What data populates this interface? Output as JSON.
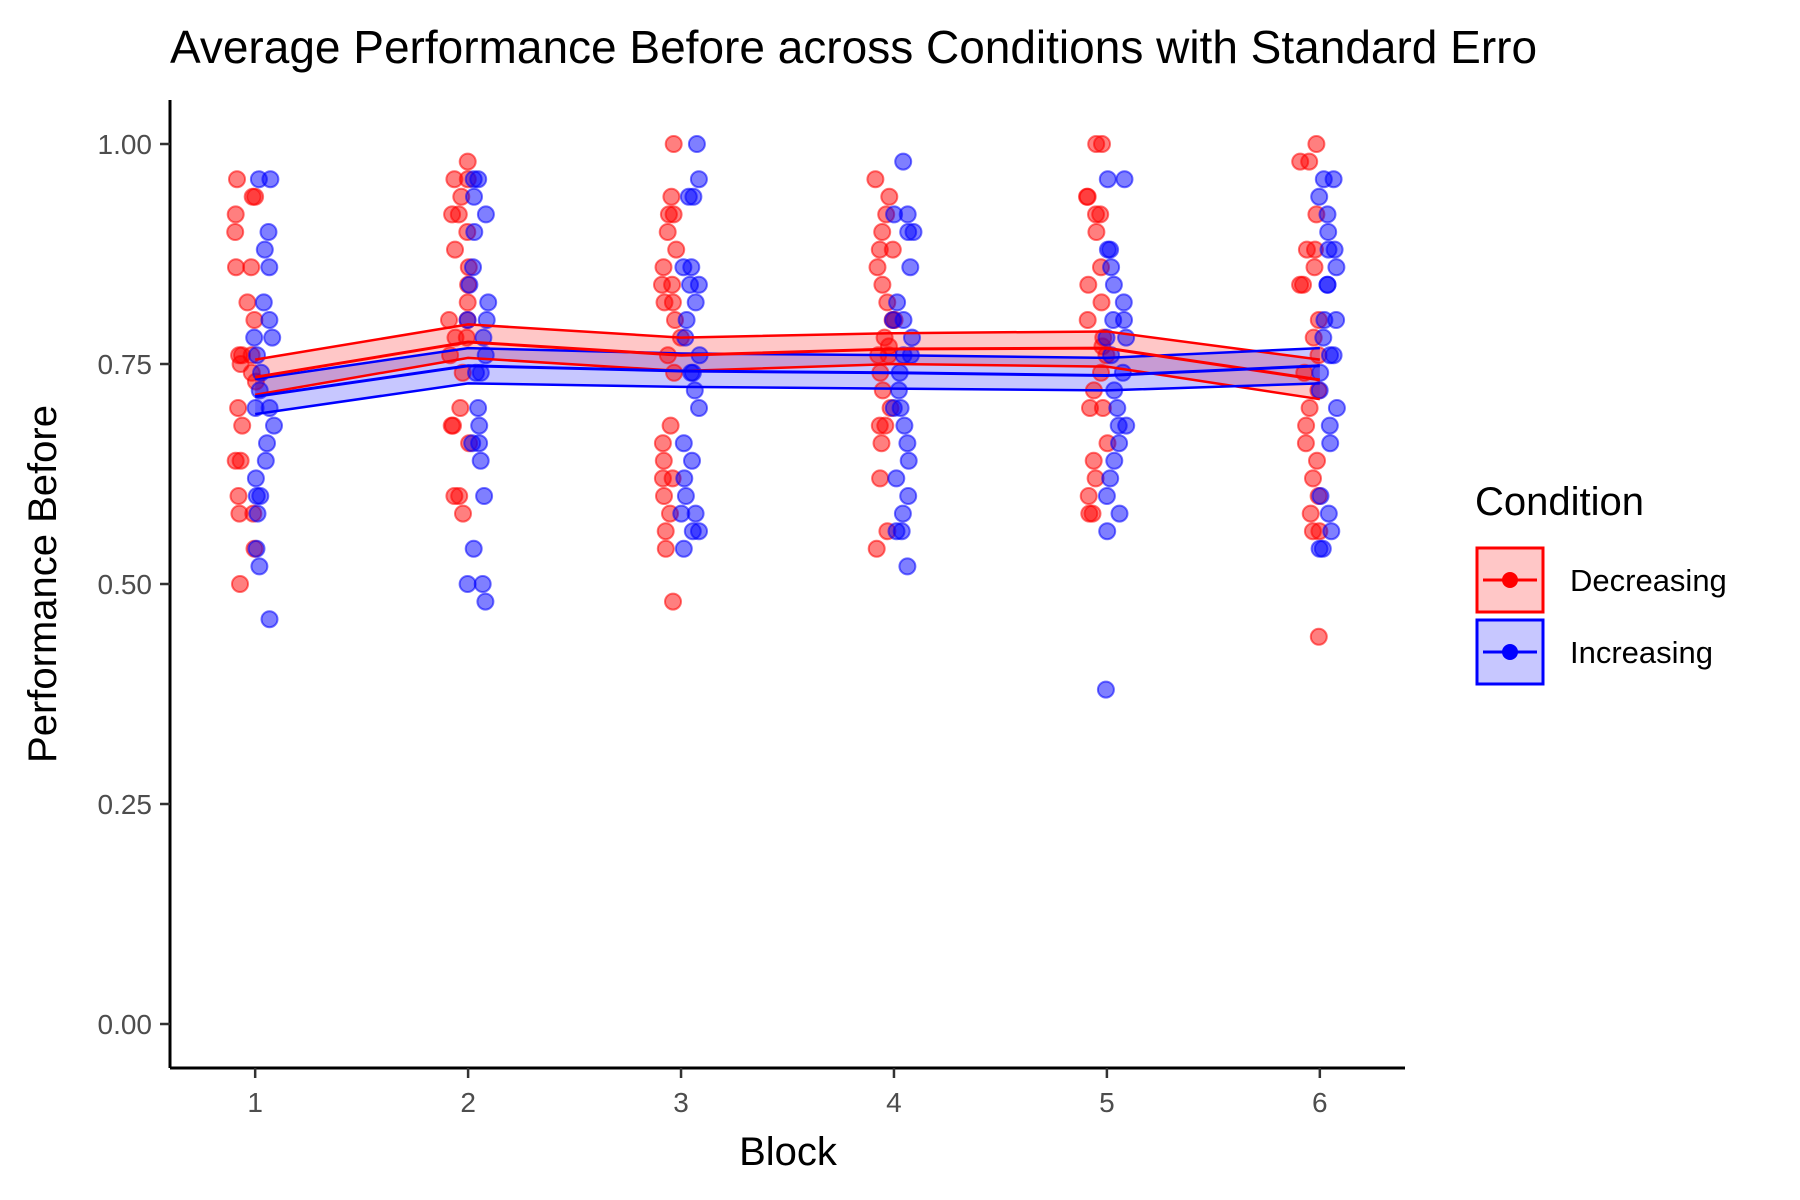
{
  "chart_data": {
    "type": "line",
    "title": "Average Performance Before across Conditions with Standard Erro",
    "xlabel": "Block",
    "ylabel": "Performance Before",
    "x": [
      1,
      2,
      3,
      4,
      5,
      6
    ],
    "xlim": [
      0.6,
      6.4
    ],
    "ylim": [
      -0.05,
      1.05
    ],
    "y_ticks": [
      "0.00",
      "0.25",
      "0.50",
      "0.75",
      "1.00"
    ],
    "x_ticks": [
      "1",
      "2",
      "3",
      "4",
      "5",
      "6"
    ],
    "grid": false,
    "legend": {
      "title": "Condition",
      "placement": "right"
    },
    "series": [
      {
        "name": "Decreasing",
        "color": "#FF0000",
        "fill": "#FFC7C7",
        "mean": [
          0.735,
          0.775,
          0.76,
          0.767,
          0.768,
          0.732
        ],
        "upper": [
          0.755,
          0.795,
          0.78,
          0.785,
          0.787,
          0.755
        ],
        "lower": [
          0.715,
          0.757,
          0.742,
          0.75,
          0.747,
          0.71
        ],
        "points": [
          [
            0.96,
            0.94,
            0.94,
            0.92,
            0.9,
            0.86,
            0.86,
            0.82,
            0.8,
            0.76,
            0.76,
            0.76,
            0.75,
            0.74,
            0.73,
            0.7,
            0.68,
            0.64,
            0.64,
            0.6,
            0.58,
            0.58,
            0.54,
            0.5
          ],
          [
            0.98,
            0.96,
            0.96,
            0.94,
            0.92,
            0.92,
            0.9,
            0.88,
            0.86,
            0.84,
            0.82,
            0.8,
            0.8,
            0.78,
            0.78,
            0.76,
            0.74,
            0.7,
            0.68,
            0.68,
            0.66,
            0.6,
            0.6,
            0.58
          ],
          [
            1.0,
            0.94,
            0.92,
            0.92,
            0.9,
            0.88,
            0.86,
            0.84,
            0.84,
            0.82,
            0.82,
            0.8,
            0.78,
            0.76,
            0.74,
            0.68,
            0.66,
            0.64,
            0.62,
            0.62,
            0.6,
            0.58,
            0.56,
            0.54,
            0.48
          ],
          [
            0.96,
            0.94,
            0.92,
            0.9,
            0.88,
            0.88,
            0.86,
            0.84,
            0.82,
            0.8,
            0.8,
            0.78,
            0.77,
            0.76,
            0.76,
            0.74,
            0.72,
            0.7,
            0.68,
            0.68,
            0.66,
            0.62,
            0.56,
            0.54
          ],
          [
            1.0,
            1.0,
            0.94,
            0.94,
            0.92,
            0.92,
            0.9,
            0.86,
            0.84,
            0.82,
            0.8,
            0.78,
            0.77,
            0.76,
            0.74,
            0.72,
            0.7,
            0.7,
            0.66,
            0.64,
            0.62,
            0.6,
            0.58,
            0.58
          ],
          [
            1.0,
            0.98,
            0.98,
            0.92,
            0.88,
            0.88,
            0.86,
            0.84,
            0.84,
            0.8,
            0.78,
            0.76,
            0.74,
            0.72,
            0.7,
            0.68,
            0.66,
            0.64,
            0.62,
            0.6,
            0.58,
            0.56,
            0.56,
            0.44
          ]
        ]
      },
      {
        "name": "Increasing",
        "color": "#0000FF",
        "fill": "#BFBFFF",
        "mean": [
          0.713,
          0.748,
          0.742,
          0.74,
          0.737,
          0.748
        ],
        "upper": [
          0.733,
          0.768,
          0.762,
          0.76,
          0.757,
          0.768
        ],
        "lower": [
          0.693,
          0.728,
          0.724,
          0.722,
          0.72,
          0.728
        ],
        "points": [
          [
            0.96,
            0.96,
            0.9,
            0.88,
            0.86,
            0.82,
            0.8,
            0.78,
            0.78,
            0.76,
            0.74,
            0.72,
            0.7,
            0.7,
            0.68,
            0.66,
            0.64,
            0.62,
            0.6,
            0.6,
            0.58,
            0.54,
            0.52,
            0.46
          ],
          [
            0.96,
            0.96,
            0.94,
            0.92,
            0.9,
            0.86,
            0.84,
            0.82,
            0.8,
            0.8,
            0.78,
            0.76,
            0.74,
            0.74,
            0.7,
            0.68,
            0.66,
            0.66,
            0.64,
            0.6,
            0.54,
            0.5,
            0.5,
            0.48
          ],
          [
            1.0,
            0.96,
            0.94,
            0.94,
            0.86,
            0.86,
            0.84,
            0.84,
            0.82,
            0.8,
            0.78,
            0.76,
            0.74,
            0.74,
            0.72,
            0.7,
            0.66,
            0.64,
            0.62,
            0.6,
            0.58,
            0.58,
            0.56,
            0.56,
            0.54
          ],
          [
            0.98,
            0.92,
            0.92,
            0.9,
            0.9,
            0.86,
            0.82,
            0.8,
            0.8,
            0.78,
            0.76,
            0.76,
            0.74,
            0.72,
            0.7,
            0.7,
            0.68,
            0.66,
            0.64,
            0.62,
            0.6,
            0.58,
            0.56,
            0.56,
            0.52
          ],
          [
            0.96,
            0.96,
            0.88,
            0.88,
            0.86,
            0.84,
            0.82,
            0.8,
            0.8,
            0.78,
            0.78,
            0.76,
            0.74,
            0.72,
            0.7,
            0.68,
            0.68,
            0.66,
            0.64,
            0.62,
            0.6,
            0.58,
            0.56,
            0.38
          ],
          [
            0.96,
            0.96,
            0.94,
            0.92,
            0.9,
            0.88,
            0.88,
            0.86,
            0.84,
            0.84,
            0.8,
            0.8,
            0.78,
            0.76,
            0.76,
            0.74,
            0.72,
            0.7,
            0.68,
            0.66,
            0.6,
            0.58,
            0.56,
            0.54,
            0.54
          ]
        ]
      }
    ]
  }
}
